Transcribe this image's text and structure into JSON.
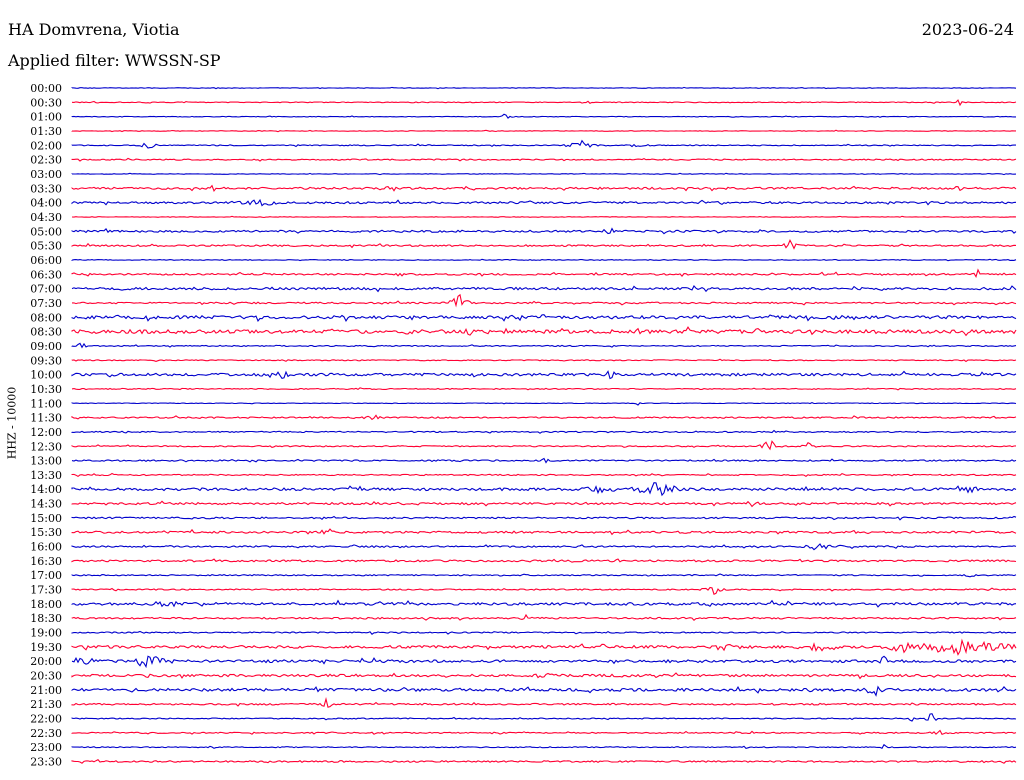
{
  "header": {
    "station": "HA Domvrena, Viotia",
    "date": "2023-06-24",
    "filter": "Applied filter: WWSSN-SP"
  },
  "chart_data": {
    "type": "line",
    "ylabel": "HHZ - 10000",
    "colors": {
      "blue": "#0000cc",
      "red": "#ff0033"
    },
    "rows": [
      {
        "label": "00:00",
        "color": "#0000cc",
        "noise": 0.3,
        "events": []
      },
      {
        "label": "00:30",
        "color": "#ff0033",
        "noise": 0.4,
        "events": [
          [
            0.08,
            3,
            0.002
          ],
          [
            0.7,
            3,
            0.002
          ],
          [
            0.94,
            4,
            0.003
          ]
        ]
      },
      {
        "label": "01:00",
        "color": "#0000cc",
        "noise": 0.3,
        "events": [
          [
            0.46,
            6,
            0.003
          ]
        ]
      },
      {
        "label": "01:30",
        "color": "#ff0033",
        "noise": 0.3,
        "events": []
      },
      {
        "label": "02:00",
        "color": "#0000cc",
        "noise": 0.5,
        "events": [
          [
            0.08,
            5,
            0.006
          ],
          [
            0.54,
            5,
            0.012
          ],
          [
            0.6,
            5,
            0.006
          ]
        ]
      },
      {
        "label": "02:30",
        "color": "#ff0033",
        "noise": 0.6,
        "events": []
      },
      {
        "label": "03:00",
        "color": "#0000cc",
        "noise": 0.3,
        "events": []
      },
      {
        "label": "03:30",
        "color": "#ff0033",
        "noise": 1.0,
        "events": [
          [
            0.15,
            3,
            0.015
          ],
          [
            0.34,
            3,
            0.02
          ],
          [
            0.94,
            3,
            0.015
          ]
        ]
      },
      {
        "label": "04:00",
        "color": "#0000cc",
        "noise": 1.0,
        "events": [
          [
            0.2,
            4,
            0.02
          ]
        ]
      },
      {
        "label": "04:30",
        "color": "#ff0033",
        "noise": 0.3,
        "events": []
      },
      {
        "label": "05:00",
        "color": "#0000cc",
        "noise": 1.0,
        "events": [
          [
            0.57,
            6,
            0.005
          ]
        ]
      },
      {
        "label": "05:30",
        "color": "#ff0033",
        "noise": 0.8,
        "events": [
          [
            0.76,
            9,
            0.005
          ],
          [
            0.88,
            3,
            0.003
          ]
        ]
      },
      {
        "label": "06:00",
        "color": "#0000cc",
        "noise": 0.4,
        "events": []
      },
      {
        "label": "06:30",
        "color": "#ff0033",
        "noise": 0.8,
        "events": [
          [
            0.28,
            3,
            0.002
          ],
          [
            0.31,
            3,
            0.002
          ],
          [
            0.96,
            7,
            0.004
          ]
        ]
      },
      {
        "label": "07:00",
        "color": "#0000cc",
        "noise": 1.2,
        "events": []
      },
      {
        "label": "07:30",
        "color": "#ff0033",
        "noise": 0.8,
        "events": [
          [
            0.41,
            13,
            0.006
          ]
        ]
      },
      {
        "label": "08:00",
        "color": "#0000cc",
        "noise": 1.5,
        "events": [
          [
            0.29,
            4,
            0.005
          ],
          [
            0.36,
            3,
            0.008
          ]
        ]
      },
      {
        "label": "08:30",
        "color": "#ff0033",
        "noise": 1.8,
        "events": [
          [
            0.11,
            4,
            0.005
          ],
          [
            0.36,
            3,
            0.03
          ],
          [
            0.42,
            5,
            0.006
          ],
          [
            0.6,
            3,
            0.03
          ]
        ]
      },
      {
        "label": "09:00",
        "color": "#0000cc",
        "noise": 0.5,
        "events": [
          [
            0.01,
            4,
            0.004
          ],
          [
            0.22,
            4,
            0.003
          ]
        ]
      },
      {
        "label": "09:30",
        "color": "#ff0033",
        "noise": 0.5,
        "events": []
      },
      {
        "label": "10:00",
        "color": "#0000cc",
        "noise": 1.3,
        "events": [
          [
            0.22,
            5,
            0.02
          ],
          [
            0.57,
            5,
            0.006
          ]
        ]
      },
      {
        "label": "10:30",
        "color": "#ff0033",
        "noise": 0.5,
        "events": []
      },
      {
        "label": "11:00",
        "color": "#0000cc",
        "noise": 0.3,
        "events": [
          [
            0.6,
            3,
            0.002
          ]
        ]
      },
      {
        "label": "11:30",
        "color": "#ff0033",
        "noise": 0.7,
        "events": [
          [
            0.32,
            3,
            0.01
          ]
        ]
      },
      {
        "label": "12:00",
        "color": "#0000cc",
        "noise": 0.6,
        "events": []
      },
      {
        "label": "12:30",
        "color": "#ff0033",
        "noise": 0.6,
        "events": [
          [
            0.74,
            9,
            0.006
          ],
          [
            0.78,
            4,
            0.006
          ]
        ]
      },
      {
        "label": "13:00",
        "color": "#0000cc",
        "noise": 0.7,
        "events": [
          [
            0.5,
            4,
            0.004
          ]
        ]
      },
      {
        "label": "13:30",
        "color": "#ff0033",
        "noise": 0.6,
        "events": []
      },
      {
        "label": "14:00",
        "color": "#0000cc",
        "noise": 1.3,
        "events": [
          [
            0.56,
            4,
            0.02
          ],
          [
            0.62,
            8,
            0.02
          ],
          [
            0.95,
            4,
            0.01
          ]
        ]
      },
      {
        "label": "14:30",
        "color": "#ff0033",
        "noise": 1.0,
        "events": [
          [
            0.42,
            3,
            0.004
          ],
          [
            0.72,
            3,
            0.01
          ]
        ]
      },
      {
        "label": "15:00",
        "color": "#0000cc",
        "noise": 0.8,
        "events": []
      },
      {
        "label": "15:30",
        "color": "#ff0033",
        "noise": 1.0,
        "events": [
          [
            0.27,
            6,
            0.006
          ],
          [
            0.84,
            3,
            0.004
          ]
        ]
      },
      {
        "label": "16:00",
        "color": "#0000cc",
        "noise": 0.8,
        "events": [
          [
            0.3,
            3,
            0.003
          ],
          [
            0.44,
            3,
            0.003
          ],
          [
            0.79,
            5,
            0.01
          ],
          [
            0.82,
            4,
            0.01
          ]
        ]
      },
      {
        "label": "16:30",
        "color": "#ff0033",
        "noise": 0.9,
        "events": []
      },
      {
        "label": "17:00",
        "color": "#0000cc",
        "noise": 0.6,
        "events": [
          [
            0.9,
            3,
            0.003
          ],
          [
            0.95,
            4,
            0.003
          ]
        ]
      },
      {
        "label": "17:30",
        "color": "#ff0033",
        "noise": 0.6,
        "events": [
          [
            0.68,
            5,
            0.01
          ]
        ]
      },
      {
        "label": "18:00",
        "color": "#0000cc",
        "noise": 1.3,
        "events": [
          [
            0.1,
            3,
            0.03
          ]
        ]
      },
      {
        "label": "18:30",
        "color": "#ff0033",
        "noise": 0.8,
        "events": [
          [
            0.48,
            4,
            0.005
          ]
        ]
      },
      {
        "label": "19:00",
        "color": "#0000cc",
        "noise": 0.6,
        "events": [
          [
            0.32,
            4,
            0.003
          ]
        ]
      },
      {
        "label": "19:30",
        "color": "#ff0033",
        "noise": 1.3,
        "events": [
          [
            0.69,
            4,
            0.015
          ],
          [
            0.79,
            6,
            0.02
          ],
          [
            0.88,
            6,
            0.02
          ],
          [
            0.94,
            8,
            0.05
          ]
        ]
      },
      {
        "label": "20:00",
        "color": "#0000cc",
        "noise": 1.3,
        "events": [
          [
            0.01,
            6,
            0.02
          ],
          [
            0.08,
            7,
            0.02
          ],
          [
            0.86,
            6,
            0.004
          ]
        ]
      },
      {
        "label": "20:30",
        "color": "#ff0033",
        "noise": 1.2,
        "events": [
          [
            0.08,
            3,
            0.01
          ],
          [
            0.5,
            4,
            0.01
          ]
        ]
      },
      {
        "label": "21:00",
        "color": "#0000cc",
        "noise": 1.4,
        "events": [
          [
            0.26,
            4,
            0.004
          ],
          [
            0.55,
            4,
            0.008
          ],
          [
            0.85,
            7,
            0.008
          ]
        ]
      },
      {
        "label": "21:30",
        "color": "#ff0033",
        "noise": 0.8,
        "events": [
          [
            0.27,
            7,
            0.004
          ]
        ]
      },
      {
        "label": "22:00",
        "color": "#0000cc",
        "noise": 0.5,
        "events": [
          [
            0.89,
            4,
            0.003
          ],
          [
            0.91,
            6,
            0.005
          ]
        ]
      },
      {
        "label": "22:30",
        "color": "#ff0033",
        "noise": 0.6,
        "events": [
          [
            0.45,
            3,
            0.005
          ],
          [
            0.92,
            3,
            0.01
          ]
        ]
      },
      {
        "label": "23:00",
        "color": "#0000cc",
        "noise": 0.5,
        "events": [
          [
            0.15,
            3,
            0.003
          ],
          [
            0.86,
            3,
            0.003
          ]
        ]
      },
      {
        "label": "23:30",
        "color": "#ff0033",
        "noise": 0.8,
        "events": [
          [
            0.01,
            3,
            0.003
          ]
        ]
      }
    ]
  }
}
